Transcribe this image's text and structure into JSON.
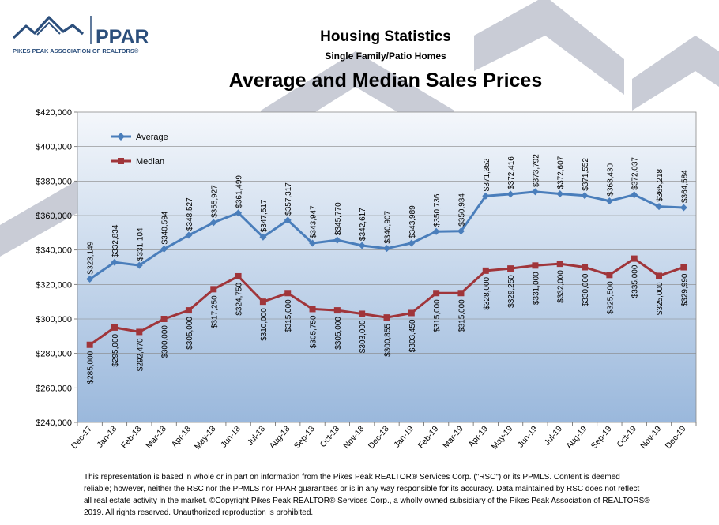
{
  "logo": {
    "wordmark": "PPAR",
    "tagline": "PIKES PEAK ASSOCIATION OF REALTORS®"
  },
  "header": {
    "title": "Housing Statistics",
    "subtitle": "Single Family/Patio Homes",
    "chart_title": "Average and Median Sales Prices"
  },
  "colors": {
    "average": "#4a7ebb",
    "median": "#a0353a",
    "accent": "#2c4f7c",
    "plot_gradient_top": "#f4f7fb",
    "plot_gradient_bottom": "#9ab8dc"
  },
  "chart_data": {
    "type": "line",
    "x": [
      "Dec-17",
      "Jan-18",
      "Feb-18",
      "Mar-18",
      "Apr-18",
      "May-18",
      "Jun-18",
      "Jul-18",
      "Aug-18",
      "Sep-18",
      "Oct-18",
      "Nov-18",
      "Dec-18",
      "Jan-19",
      "Feb-19",
      "Mar-19",
      "Apr-19",
      "May-19",
      "Jun-19",
      "Jul-19",
      "Aug-19",
      "Sep-19",
      "Oct-19",
      "Nov-19",
      "Dec-19"
    ],
    "ylim": [
      240000,
      420000
    ],
    "ytick_labels": [
      "$240,000",
      "$260,000",
      "$280,000",
      "$300,000",
      "$320,000",
      "$340,000",
      "$360,000",
      "$380,000",
      "$400,000",
      "$420,000"
    ],
    "grid": true,
    "legend": "top-left",
    "series": [
      {
        "name": "Average",
        "values": [
          323149,
          332834,
          331104,
          340594,
          348527,
          355927,
          361499,
          347517,
          357317,
          343947,
          345770,
          342617,
          340907,
          343989,
          350736,
          350934,
          371352,
          372416,
          373792,
          372607,
          371552,
          368430,
          372037,
          365218,
          364584
        ],
        "labels": [
          "$323,149",
          "$332,834",
          "$331,104",
          "$340,594",
          "$348,527",
          "$355,927",
          "$361,499",
          "$347,517",
          "$357,317",
          "$343,947",
          "$345,770",
          "$342,617",
          "$340,907",
          "$343,989",
          "$350,736",
          "$350,934",
          "$371,352",
          "$372,416",
          "$373,792",
          "$372,607",
          "$371,552",
          "$368,430",
          "$372,037",
          "$365,218",
          "$364,584"
        ]
      },
      {
        "name": "Median",
        "values": [
          285000,
          295000,
          292470,
          300000,
          305000,
          317250,
          324750,
          310000,
          315000,
          305750,
          305000,
          303000,
          300855,
          303450,
          315000,
          315000,
          328000,
          329250,
          331000,
          332000,
          330000,
          325500,
          335000,
          325000,
          329990
        ],
        "labels": [
          "$285,000",
          "$295,000",
          "$292,470",
          "$300,000",
          "$305,000",
          "$317,250",
          "$324,750",
          "$310,000",
          "$315,000",
          "$305,750",
          "$305,000",
          "$303,000",
          "$300,855",
          "$303,450",
          "$315,000",
          "$315,000",
          "$328,000",
          "$329,250",
          "$331,000",
          "$332,000",
          "$330,000",
          "$325,500",
          "$335,000",
          "$325,000",
          "$329,990"
        ]
      }
    ]
  },
  "footer": {
    "lines": [
      "This representation is based in whole or in part on information from the Pikes Peak REALTOR® Services Corp.  (\"RSC\") or its PPMLS.  Content is deemed",
      "reliable; however, neither the RSC nor the PPMLS nor PPAR guarantees or is in any way responsible for its accuracy.  Data maintained by RSC does not reflect",
      "all real estate activity in the market.  ©Copyright Pikes Peak REALTOR® Services Corp., a wholly owned subsidiary of the Pikes Peak Association of REALTORS®",
      "2019.  All rights reserved.  Unauthorized reproduction is prohibited."
    ]
  }
}
